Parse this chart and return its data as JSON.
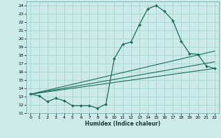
{
  "title": "",
  "xlabel": "Humidex (Indice chaleur)",
  "bg_color": "#cceaea",
  "grid_color": "#aad4d4",
  "line_color": "#1a6b5a",
  "xlim": [
    -0.5,
    22.5
  ],
  "ylim": [
    11,
    24.5
  ],
  "yticks": [
    11,
    12,
    13,
    14,
    15,
    16,
    17,
    18,
    19,
    20,
    21,
    22,
    23,
    24
  ],
  "xticks": [
    0,
    1,
    2,
    3,
    4,
    5,
    6,
    7,
    8,
    9,
    10,
    11,
    12,
    13,
    14,
    15,
    16,
    17,
    18,
    19,
    20,
    21,
    22
  ],
  "line1_x": [
    0,
    1,
    2,
    3,
    4,
    5,
    6,
    7,
    8,
    9,
    10,
    11,
    12,
    13,
    14,
    15,
    16,
    17,
    18,
    19,
    20,
    21,
    22
  ],
  "line1_y": [
    13.3,
    13.1,
    12.4,
    12.8,
    12.5,
    11.9,
    11.9,
    11.9,
    11.6,
    12.1,
    17.6,
    19.3,
    19.6,
    21.7,
    23.6,
    24.0,
    23.3,
    22.2,
    19.7,
    18.2,
    18.1,
    16.7,
    16.4
  ],
  "line2_x": [
    0,
    22
  ],
  "line2_y": [
    13.3,
    16.4
  ],
  "line3_x": [
    0,
    22
  ],
  "line3_y": [
    13.3,
    17.2
  ],
  "line4_x": [
    0,
    22
  ],
  "line4_y": [
    13.3,
    18.5
  ]
}
